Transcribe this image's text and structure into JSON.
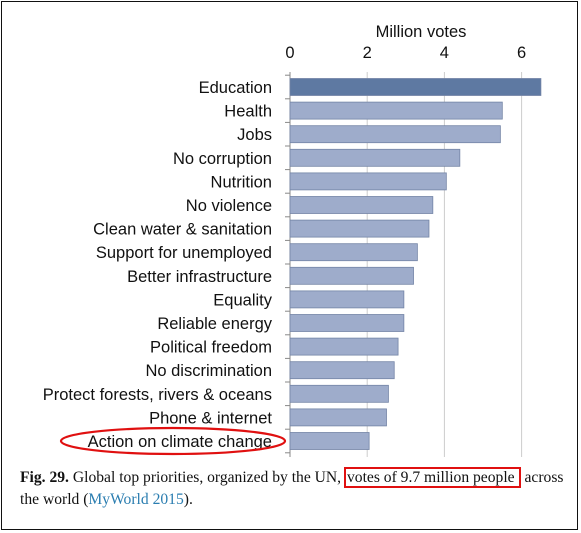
{
  "chart_data": {
    "type": "bar",
    "orientation": "horizontal",
    "xlabel": "Million votes",
    "xlim": [
      0,
      6.6
    ],
    "xticks": [
      0,
      2,
      4,
      6
    ],
    "grid": true,
    "categories": [
      "Education",
      "Health",
      "Jobs",
      "No corruption",
      "Nutrition",
      "No violence",
      "Clean water & sanitation",
      "Support for unemployed",
      "Better infrastructure",
      "Equality",
      "Reliable energy",
      "Political freedom",
      "No discrimination",
      "Protect forests, rivers & oceans",
      "Phone & internet",
      "Action on climate change"
    ],
    "values": [
      6.5,
      5.5,
      5.45,
      4.4,
      4.05,
      3.7,
      3.6,
      3.3,
      3.2,
      2.95,
      2.95,
      2.8,
      2.7,
      2.55,
      2.5,
      2.05
    ],
    "highlighted_category": "Action on climate change",
    "colors": {
      "bar_top": "#5e79a2",
      "bar_default": "#9eaccb",
      "bar_stroke": "#7384a6",
      "grid": "#cccccc",
      "highlight": "#e01010"
    }
  },
  "caption": {
    "fig_label": "Fig. 29.",
    "text_before": " Global top priorities, organized by the UN, ",
    "highlighted": "votes of 9.7 million people",
    "text_after": " across the world (",
    "citation": "MyWorld 2015",
    "closing": ")."
  }
}
